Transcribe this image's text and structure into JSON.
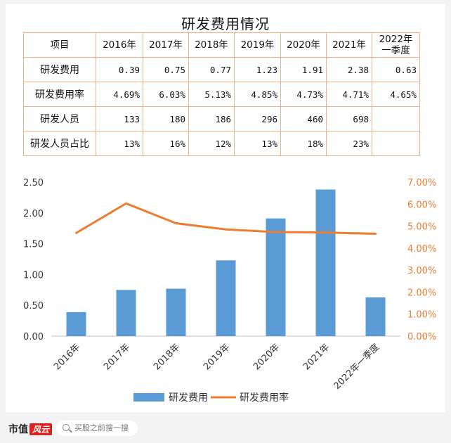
{
  "title": "研发费用情况",
  "table": {
    "columns": [
      "项目",
      "2016年",
      "2017年",
      "2018年",
      "2019年",
      "2020年",
      "2021年",
      "2022年\n一季度"
    ],
    "rows": [
      {
        "label": "研发费用",
        "cells": [
          "0.39",
          "0.75",
          "0.77",
          "1.23",
          "1.91",
          "2.38",
          "0.63"
        ]
      },
      {
        "label": "研发费用率",
        "cells": [
          "4.69%",
          "6.03%",
          "5.13%",
          "4.85%",
          "4.73%",
          "4.71%",
          "4.65%"
        ]
      },
      {
        "label": "研发人员",
        "cells": [
          "133",
          "180",
          "186",
          "296",
          "460",
          "698",
          ""
        ]
      },
      {
        "label": "研发人员占比",
        "cells": [
          "13%",
          "16%",
          "12%",
          "13%",
          "18%",
          "23%",
          ""
        ]
      }
    ]
  },
  "chart_data": {
    "type": "bar",
    "categories": [
      "2016年",
      "2017年",
      "2018年",
      "2019年",
      "2020年",
      "2021年",
      "2022年一季度"
    ],
    "series": [
      {
        "name": "研发费用",
        "type": "bar",
        "axis": "left",
        "color": "#5b9bd5",
        "values": [
          0.39,
          0.75,
          0.77,
          1.23,
          1.91,
          2.38,
          0.63
        ]
      },
      {
        "name": "研发费用率",
        "type": "line",
        "axis": "right",
        "color": "#ed7d31",
        "values": [
          4.69,
          6.03,
          5.13,
          4.85,
          4.73,
          4.71,
          4.65
        ]
      }
    ],
    "y_left": {
      "range": [
        0,
        2.5
      ],
      "ticks": [
        "0.00",
        "0.50",
        "1.00",
        "1.50",
        "2.00",
        "2.50"
      ]
    },
    "y_right": {
      "range": [
        0,
        7
      ],
      "ticks": [
        "0.00%",
        "1.00%",
        "2.00%",
        "3.00%",
        "4.00%",
        "5.00%",
        "6.00%",
        "7.00%"
      ],
      "color": "#ed7d31"
    },
    "grid": false,
    "legend": "bottom"
  },
  "footer": {
    "brand": "市值",
    "brand_mark": "风云",
    "search_placeholder": "买股之前搜一搜"
  }
}
